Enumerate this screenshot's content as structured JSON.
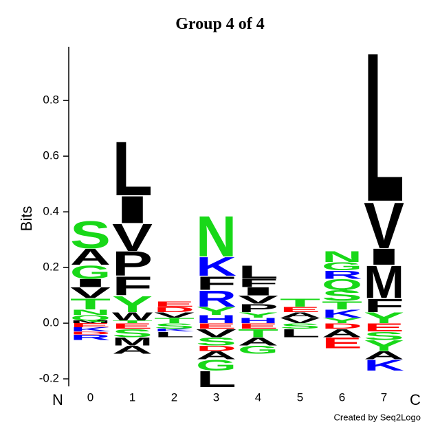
{
  "chart_data": {
    "type": "logo",
    "title": "Group 4 of 4",
    "y_label": "Bits",
    "left_label": "N",
    "right_label": "C",
    "footer": "Created by Seq2Logo",
    "categories": [
      "0",
      "1",
      "2",
      "3",
      "4",
      "5",
      "6",
      "7"
    ],
    "ylim": [
      -0.227,
      0.993
    ],
    "yticks": [
      -0.2,
      {
        "value": 0,
        "label": "0.0"
      },
      0.2,
      0.4,
      0.6,
      0.8
    ],
    "positions": [
      {
        "letters": [
          {
            "letter": "M",
            "color": "#000000",
            "value": 0.01
          },
          {
            "letter": "Q",
            "color": "#18d818",
            "value": 0.02
          },
          {
            "letter": "N",
            "color": "#18d818",
            "value": 0.02
          },
          {
            "letter": "T",
            "color": "#18d818",
            "value": 0.04
          },
          {
            "letter": "V",
            "color": "#000000",
            "value": 0.04
          },
          {
            "letter": "I",
            "color": "#000000",
            "value": 0.03
          },
          {
            "letter": "G",
            "color": "#18d818",
            "value": 0.05
          },
          {
            "letter": "A",
            "color": "#000000",
            "value": 0.06
          },
          {
            "letter": "S",
            "color": "#18d818",
            "value": 0.1
          },
          {
            "letter": "E",
            "color": "#ff0000",
            "value": -0.015
          },
          {
            "letter": "K",
            "color": "#0000ff",
            "value": -0.015
          },
          {
            "letter": "D",
            "color": "#ff0000",
            "value": -0.01
          },
          {
            "letter": "R",
            "color": "#0000ff",
            "value": -0.02
          }
        ]
      },
      {
        "letters": [
          {
            "letter": "T",
            "color": "#18d818",
            "value": 0.01
          },
          {
            "letter": "W",
            "color": "#000000",
            "value": 0.03
          },
          {
            "letter": "Y",
            "color": "#18d818",
            "value": 0.06
          },
          {
            "letter": "F",
            "color": "#000000",
            "value": 0.07
          },
          {
            "letter": "P",
            "color": "#000000",
            "value": 0.09
          },
          {
            "letter": "V",
            "color": "#000000",
            "value": 0.1
          },
          {
            "letter": "I",
            "color": "#000000",
            "value": 0.1
          },
          {
            "letter": "L",
            "color": "#000000",
            "value": 0.2
          },
          {
            "letter": "E",
            "color": "#ff0000",
            "value": -0.02
          },
          {
            "letter": "S",
            "color": "#18d818",
            "value": -0.03
          },
          {
            "letter": "M",
            "color": "#000000",
            "value": -0.03
          },
          {
            "letter": "A",
            "color": "#000000",
            "value": -0.03
          }
        ]
      },
      {
        "letters": [
          {
            "letter": "T",
            "color": "#18d818",
            "value": 0.02
          },
          {
            "letter": "V",
            "color": "#000000",
            "value": 0.02
          },
          {
            "letter": "D",
            "color": "#ff0000",
            "value": 0.02
          },
          {
            "letter": "E",
            "color": "#ff0000",
            "value": 0.02
          },
          {
            "letter": "S",
            "color": "#18d818",
            "value": -0.02
          },
          {
            "letter": "K",
            "color": "#0000ff",
            "value": -0.01
          },
          {
            "letter": "L",
            "color": "#000000",
            "value": -0.02
          }
        ]
      },
      {
        "letters": [
          {
            "letter": "H",
            "color": "#0000ff",
            "value": 0.03
          },
          {
            "letter": "Y",
            "color": "#18d818",
            "value": 0.03
          },
          {
            "letter": "R",
            "color": "#0000ff",
            "value": 0.06
          },
          {
            "letter": "F",
            "color": "#000000",
            "value": 0.05
          },
          {
            "letter": "K",
            "color": "#0000ff",
            "value": 0.07
          },
          {
            "letter": "N",
            "color": "#18d818",
            "value": 0.15
          },
          {
            "letter": "E",
            "color": "#ff0000",
            "value": -0.02
          },
          {
            "letter": "V",
            "color": "#000000",
            "value": -0.03
          },
          {
            "letter": "S",
            "color": "#18d818",
            "value": -0.03
          },
          {
            "letter": "D",
            "color": "#ff0000",
            "value": -0.02
          },
          {
            "letter": "A",
            "color": "#000000",
            "value": -0.03
          },
          {
            "letter": "G",
            "color": "#18d818",
            "value": -0.04
          },
          {
            "letter": "L",
            "color": "#000000",
            "value": -0.06
          }
        ]
      },
      {
        "letters": [
          {
            "letter": "H",
            "color": "#0000ff",
            "value": 0.02
          },
          {
            "letter": "Y",
            "color": "#18d818",
            "value": 0.02
          },
          {
            "letter": "P",
            "color": "#000000",
            "value": 0.03
          },
          {
            "letter": "V",
            "color": "#000000",
            "value": 0.03
          },
          {
            "letter": "I",
            "color": "#000000",
            "value": 0.03
          },
          {
            "letter": "F",
            "color": "#000000",
            "value": 0.03
          },
          {
            "letter": "L",
            "color": "#000000",
            "value": 0.05
          },
          {
            "letter": "E",
            "color": "#ff0000",
            "value": -0.02
          },
          {
            "letter": "T",
            "color": "#18d818",
            "value": -0.03
          },
          {
            "letter": "A",
            "color": "#000000",
            "value": -0.03
          },
          {
            "letter": "G",
            "color": "#18d818",
            "value": -0.03
          }
        ]
      },
      {
        "letters": [
          {
            "letter": "V",
            "color": "#000000",
            "value": 0.02
          },
          {
            "letter": "A",
            "color": "#000000",
            "value": 0.02
          },
          {
            "letter": "E",
            "color": "#ff0000",
            "value": 0.02
          },
          {
            "letter": "T",
            "color": "#18d818",
            "value": 0.03
          },
          {
            "letter": "S",
            "color": "#18d818",
            "value": -0.02
          },
          {
            "letter": "L",
            "color": "#000000",
            "value": -0.03
          }
        ]
      },
      {
        "letters": [
          {
            "letter": "Y",
            "color": "#18d818",
            "value": 0.02
          },
          {
            "letter": "K",
            "color": "#0000ff",
            "value": 0.03
          },
          {
            "letter": "T",
            "color": "#18d818",
            "value": 0.03
          },
          {
            "letter": "S",
            "color": "#18d818",
            "value": 0.04
          },
          {
            "letter": "Q",
            "color": "#18d818",
            "value": 0.04
          },
          {
            "letter": "R",
            "color": "#0000ff",
            "value": 0.03
          },
          {
            "letter": "G",
            "color": "#18d818",
            "value": 0.03
          },
          {
            "letter": "N",
            "color": "#18d818",
            "value": 0.04
          },
          {
            "letter": "D",
            "color": "#ff0000",
            "value": -0.02
          },
          {
            "letter": "A",
            "color": "#000000",
            "value": -0.03
          },
          {
            "letter": "E",
            "color": "#ff0000",
            "value": -0.04
          }
        ]
      },
      {
        "letters": [
          {
            "letter": "Y",
            "color": "#18d818",
            "value": 0.04
          },
          {
            "letter": "F",
            "color": "#000000",
            "value": 0.05
          },
          {
            "letter": "M",
            "color": "#000000",
            "value": 0.12
          },
          {
            "letter": "I",
            "color": "#000000",
            "value": 0.06
          },
          {
            "letter": "V",
            "color": "#000000",
            "value": 0.17
          },
          {
            "letter": "L",
            "color": "#000000",
            "value": 0.55
          },
          {
            "letter": "E",
            "color": "#ff0000",
            "value": -0.03
          },
          {
            "letter": "S",
            "color": "#18d818",
            "value": -0.03
          },
          {
            "letter": "Y",
            "color": "#18d818",
            "value": -0.04
          },
          {
            "letter": "A",
            "color": "#000000",
            "value": -0.03
          },
          {
            "letter": "K",
            "color": "#0000ff",
            "value": -0.04
          }
        ]
      }
    ]
  }
}
